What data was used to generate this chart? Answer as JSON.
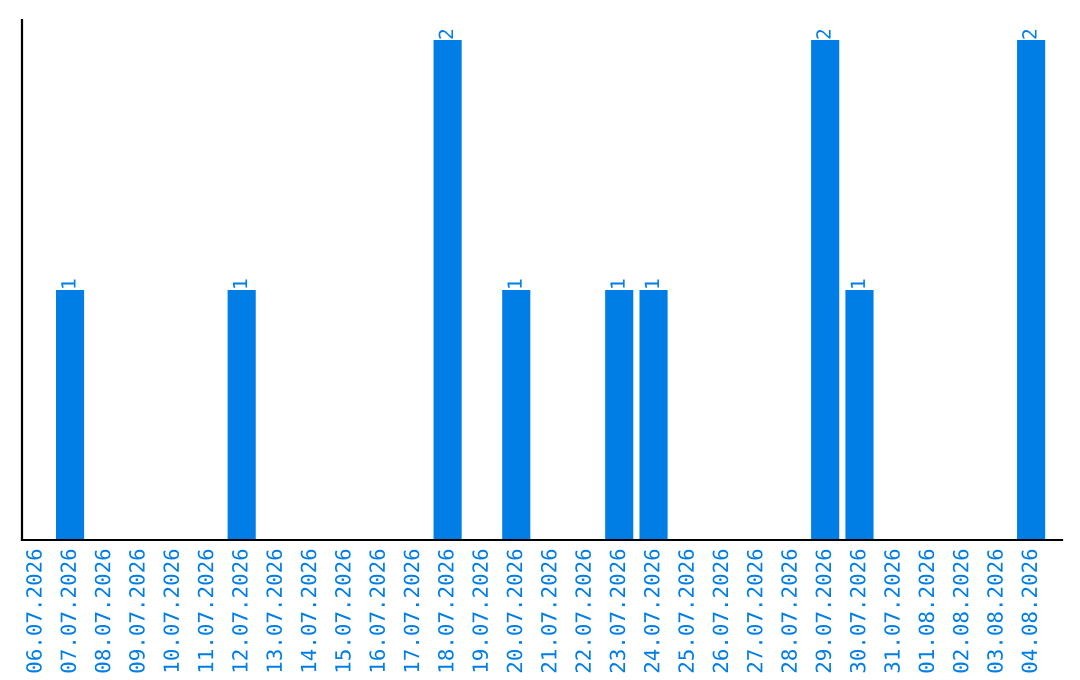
{
  "chart_data": {
    "type": "bar",
    "categories": [
      "06.07.2026",
      "07.07.2026",
      "08.07.2026",
      "09.07.2026",
      "10.07.2026",
      "11.07.2026",
      "12.07.2026",
      "13.07.2026",
      "14.07.2026",
      "15.07.2026",
      "16.07.2026",
      "17.07.2026",
      "18.07.2026",
      "19.07.2026",
      "20.07.2026",
      "21.07.2026",
      "22.07.2026",
      "23.07.2026",
      "24.07.2026",
      "25.07.2026",
      "26.07.2026",
      "27.07.2026",
      "28.07.2026",
      "29.07.2026",
      "30.07.2026",
      "31.07.2026",
      "01.08.2026",
      "02.08.2026",
      "03.08.2026",
      "04.08.2026"
    ],
    "values": [
      0,
      1,
      0,
      0,
      0,
      0,
      1,
      0,
      0,
      0,
      0,
      0,
      2,
      0,
      1,
      0,
      0,
      1,
      1,
      0,
      0,
      0,
      0,
      2,
      1,
      0,
      0,
      0,
      0,
      2
    ],
    "value_labels": [
      null,
      "1",
      null,
      null,
      null,
      null,
      "1",
      null,
      null,
      null,
      null,
      null,
      "2",
      null,
      "1",
      null,
      null,
      "1",
      "1",
      null,
      null,
      null,
      null,
      "2",
      "1",
      null,
      null,
      null,
      null,
      "2"
    ],
    "color": "#007ee5",
    "tick_labels": "x",
    "grid": false,
    "legend": false
  }
}
